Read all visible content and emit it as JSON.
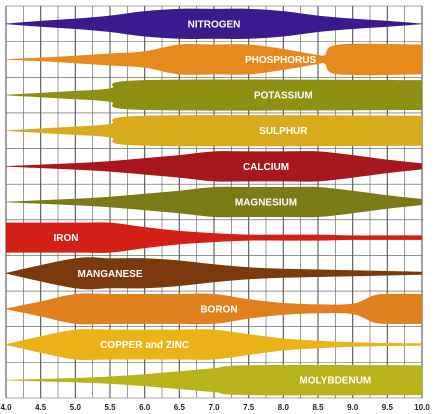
{
  "chart_data": {
    "type": "area",
    "title": "",
    "xlabel": "",
    "ylabel": "",
    "xlim": [
      4.0,
      10.0
    ],
    "x_ticks": [
      "4.0",
      "4.5",
      "5.0",
      "5.5",
      "6.0",
      "6.5",
      "7.0",
      "7.5",
      "8.0",
      "8.5",
      "9.0",
      "9.5",
      "10.0"
    ],
    "grid": true,
    "legend": "none",
    "series": [
      {
        "name": "NITROGEN",
        "color": "#3a1a8c",
        "profile": [
          [
            4.0,
            0.0
          ],
          [
            4.5,
            0.2
          ],
          [
            5.0,
            0.35
          ],
          [
            5.5,
            0.55
          ],
          [
            6.0,
            0.85
          ],
          [
            6.5,
            1.0
          ],
          [
            7.0,
            1.0
          ],
          [
            7.5,
            1.0
          ],
          [
            8.0,
            0.85
          ],
          [
            8.5,
            0.55
          ],
          [
            9.0,
            0.35
          ],
          [
            9.5,
            0.2
          ],
          [
            10.0,
            0.0
          ]
        ]
      },
      {
        "name": "PHOSPHORUS",
        "color": "#e8891e",
        "profile": [
          [
            4.0,
            0.0
          ],
          [
            4.5,
            0.12
          ],
          [
            5.0,
            0.25
          ],
          [
            5.5,
            0.4
          ],
          [
            6.0,
            0.55
          ],
          [
            6.5,
            1.0
          ],
          [
            7.0,
            1.0
          ],
          [
            7.5,
            1.0
          ],
          [
            8.0,
            0.7
          ],
          [
            8.5,
            0.3
          ],
          [
            8.6,
            0.3
          ],
          [
            8.8,
            1.0
          ],
          [
            10.0,
            1.0
          ]
        ]
      },
      {
        "name": "POTASSIUM",
        "color": "#8f8f14",
        "profile": [
          [
            4.0,
            0.0
          ],
          [
            4.5,
            0.15
          ],
          [
            5.0,
            0.28
          ],
          [
            5.5,
            0.45
          ],
          [
            6.0,
            1.0
          ],
          [
            10.0,
            1.0
          ]
        ]
      },
      {
        "name": "SULPHUR",
        "color": "#d9ab1c",
        "profile": [
          [
            4.0,
            0.0
          ],
          [
            4.5,
            0.15
          ],
          [
            5.0,
            0.28
          ],
          [
            5.5,
            0.45
          ],
          [
            6.0,
            1.0
          ],
          [
            10.0,
            1.0
          ]
        ]
      },
      {
        "name": "CALCIUM",
        "color": "#a8161e",
        "profile": [
          [
            4.0,
            0.0
          ],
          [
            4.5,
            0.12
          ],
          [
            5.0,
            0.22
          ],
          [
            5.5,
            0.35
          ],
          [
            6.0,
            0.55
          ],
          [
            6.5,
            0.75
          ],
          [
            7.0,
            1.0
          ],
          [
            7.5,
            1.0
          ],
          [
            8.0,
            1.0
          ],
          [
            8.5,
            1.0
          ],
          [
            9.0,
            0.75
          ],
          [
            9.5,
            0.45
          ],
          [
            10.0,
            0.2
          ]
        ]
      },
      {
        "name": "MAGNESIUM",
        "color": "#7c7a16",
        "profile": [
          [
            4.0,
            0.0
          ],
          [
            4.5,
            0.12
          ],
          [
            5.0,
            0.22
          ],
          [
            5.5,
            0.35
          ],
          [
            6.0,
            0.55
          ],
          [
            6.5,
            0.75
          ],
          [
            7.0,
            1.0
          ],
          [
            7.5,
            1.0
          ],
          [
            8.0,
            1.0
          ],
          [
            8.5,
            1.0
          ],
          [
            9.0,
            0.75
          ],
          [
            9.5,
            0.45
          ],
          [
            10.0,
            0.2
          ]
        ]
      },
      {
        "name": "IRON",
        "color": "#d31f16",
        "profile": [
          [
            4.0,
            1.0
          ],
          [
            5.0,
            1.0
          ],
          [
            5.5,
            1.0
          ],
          [
            6.0,
            0.7
          ],
          [
            6.5,
            0.45
          ],
          [
            7.0,
            0.3
          ],
          [
            7.5,
            0.2
          ],
          [
            8.0,
            0.2
          ],
          [
            8.5,
            0.2
          ],
          [
            9.0,
            0.15
          ],
          [
            9.5,
            0.15
          ],
          [
            10.0,
            0.15
          ]
        ]
      },
      {
        "name": "MANGANESE",
        "color": "#7a3a0e",
        "profile": [
          [
            4.0,
            0.0
          ],
          [
            5.0,
            1.0
          ],
          [
            5.5,
            1.0
          ],
          [
            6.0,
            1.0
          ],
          [
            6.5,
            0.85
          ],
          [
            7.0,
            0.6
          ],
          [
            7.5,
            0.4
          ],
          [
            8.0,
            0.3
          ],
          [
            8.5,
            0.25
          ],
          [
            9.0,
            0.2
          ],
          [
            9.5,
            0.15
          ],
          [
            10.0,
            0.1
          ]
        ]
      },
      {
        "name": "BORON",
        "color": "#e1801e",
        "profile": [
          [
            4.0,
            0.0
          ],
          [
            4.5,
            0.5
          ],
          [
            5.0,
            1.0
          ],
          [
            5.5,
            1.0
          ],
          [
            6.0,
            1.0
          ],
          [
            6.5,
            1.0
          ],
          [
            7.0,
            1.0
          ],
          [
            7.5,
            0.65
          ],
          [
            8.0,
            0.4
          ],
          [
            8.5,
            0.3
          ],
          [
            9.0,
            0.35
          ],
          [
            9.3,
            0.9
          ],
          [
            9.5,
            1.0
          ],
          [
            10.0,
            1.0
          ]
        ]
      },
      {
        "name": "COPPER and ZINC",
        "color": "#ecb318",
        "profile": [
          [
            4.0,
            0.0
          ],
          [
            4.5,
            0.55
          ],
          [
            5.0,
            1.0
          ],
          [
            5.5,
            1.0
          ],
          [
            6.0,
            1.0
          ],
          [
            6.5,
            1.0
          ],
          [
            7.0,
            1.0
          ],
          [
            7.5,
            0.7
          ],
          [
            8.0,
            0.4
          ],
          [
            8.5,
            0.25
          ],
          [
            9.0,
            0.15
          ],
          [
            9.5,
            0.1
          ],
          [
            10.0,
            0.08
          ]
        ]
      },
      {
        "name": "MOLYBDENUM",
        "color": "#b9b31b",
        "profile": [
          [
            4.0,
            0.0
          ],
          [
            4.5,
            0.08
          ],
          [
            5.0,
            0.15
          ],
          [
            5.5,
            0.25
          ],
          [
            6.0,
            0.4
          ],
          [
            6.5,
            0.6
          ],
          [
            7.0,
            0.8
          ],
          [
            7.5,
            1.0
          ],
          [
            10.0,
            1.0
          ]
        ]
      }
    ]
  },
  "colors": {
    "grid": "#555555",
    "background": "#ffffff",
    "label_text": "#ffffff",
    "tick_text": "#222222"
  }
}
